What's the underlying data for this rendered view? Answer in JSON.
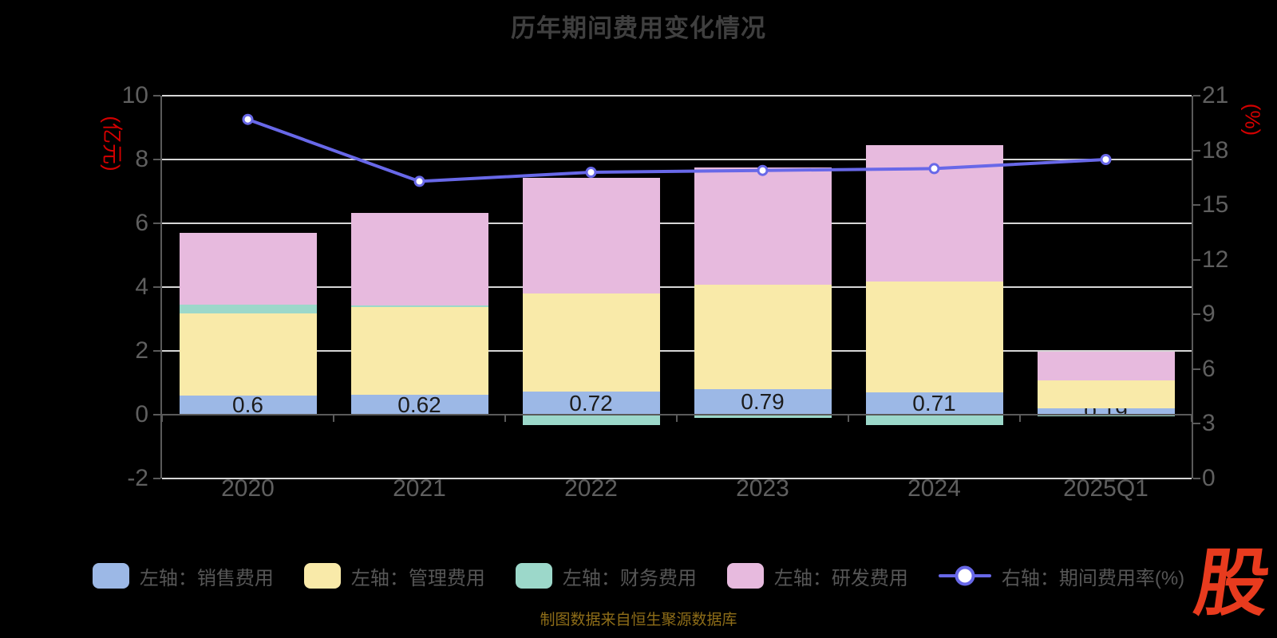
{
  "title": "历年期间费用变化情况",
  "footer": {
    "text": "制图数据来自恒生聚源数据库"
  },
  "logo": {
    "text": "股",
    "color": "#e83b1e"
  },
  "colors": {
    "background": "#000000",
    "title_text": "#3f3f3f",
    "axis_text": "#5f5f5f",
    "axis_line": "#5a5a5a",
    "grid_line": "#d6d6d6",
    "axis_name_red": "#d40000",
    "bar_value_label": "#1c1c1c",
    "footer_gold": "#8e6d18"
  },
  "chart_data": {
    "type": "combo-stacked-bar-line",
    "categories": [
      "2020",
      "2021",
      "2022",
      "2023",
      "2024",
      "2025Q1"
    ],
    "bar_stack_series": [
      {
        "key": "sales-expense",
        "label": "左轴：销售费用",
        "color": "#9cb8e6",
        "values": [
          0.6,
          0.62,
          0.72,
          0.79,
          0.71,
          0.19
        ]
      },
      {
        "key": "admin-expense",
        "label": "左轴：管理费用",
        "color": "#f9eaa9",
        "values": [
          2.57,
          2.76,
          3.07,
          3.29,
          3.46,
          0.88
        ]
      },
      {
        "key": "finance-expense",
        "label": "左轴：财务费用",
        "color": "#9cd8ca",
        "values": [
          0.27,
          0.04,
          -0.33,
          -0.09,
          -0.33,
          -0.06
        ]
      },
      {
        "key": "rd-expense",
        "label": "左轴：研发费用",
        "color": "#e7bade",
        "values": [
          2.27,
          2.91,
          3.63,
          3.67,
          4.29,
          0.9
        ]
      }
    ],
    "line_series": {
      "key": "expense-ratio",
      "label": "右轴：期间费用率(%)",
      "color": "#6868e8",
      "values": [
        19.7,
        16.3,
        16.8,
        16.9,
        17.0,
        17.5
      ]
    },
    "bar_value_labels": [
      "0.6",
      "0.62",
      "0.72",
      "0.79",
      "0.71",
      "0.19"
    ],
    "left_axis": {
      "name": "(亿元)",
      "min": -2,
      "max": 10,
      "ticks": [
        10,
        8,
        6,
        4,
        2,
        0,
        -2
      ]
    },
    "right_axis": {
      "name": "(%)",
      "min": 0,
      "max": 21,
      "ticks": [
        21,
        18,
        15,
        12,
        9,
        6,
        3,
        0
      ]
    },
    "grid": true,
    "legend_position": "bottom"
  }
}
